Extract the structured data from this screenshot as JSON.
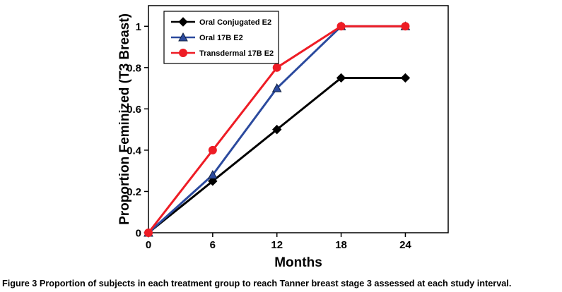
{
  "figure": {
    "caption_label": "Figure 3",
    "caption_text": "Proportion of subjects in each treatment group to reach Tanner breast stage 3 assessed at each study interval."
  },
  "chart_data": {
    "type": "line",
    "title": "",
    "xlabel": "Months",
    "ylabel": "Proportion Feminized (T3 Breast)",
    "x": [
      0,
      6,
      12,
      18,
      24
    ],
    "series": [
      {
        "name": "Oral Conjugated E2",
        "values": [
          0,
          0.25,
          0.5,
          0.75,
          0.75
        ],
        "color": "#000000",
        "marker": "diamond"
      },
      {
        "name": "Oral 17B E2",
        "values": [
          0,
          0.28,
          0.7,
          1,
          1
        ],
        "color": "#2b4a9e",
        "marker": "triangle"
      },
      {
        "name": "Transdermal 17B E2",
        "values": [
          0,
          0.4,
          0.8,
          1,
          1
        ],
        "color": "#ee1c25",
        "marker": "circle"
      }
    ],
    "xticks": [
      0,
      6,
      12,
      18,
      24
    ],
    "xtick_labels": [
      "0",
      "6",
      "12",
      "18",
      "24"
    ],
    "yticks": [
      0,
      0.2,
      0.4,
      0.6,
      0.8,
      1
    ],
    "ytick_labels": [
      "0",
      "0.2",
      "0.4",
      "0.6",
      "0.8",
      "1"
    ],
    "xlim": [
      0,
      28
    ],
    "ylim": [
      0,
      1.1
    ],
    "grid": false,
    "legend_position": "top-left",
    "axis_color": "#000000",
    "background_color": "#ffffff"
  }
}
